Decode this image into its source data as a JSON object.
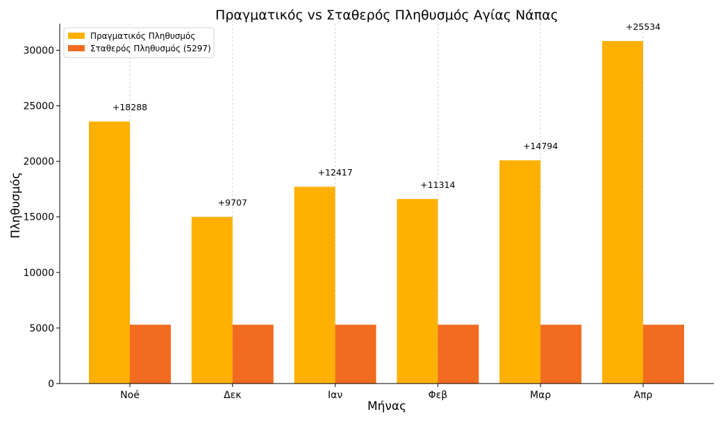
{
  "chart_data": {
    "type": "bar",
    "title": "Πραγματικός vs Σταθερός Πληθυσμός Αγίας Νάπας",
    "xlabel": "Μήνας",
    "ylabel": "Πληθυσμός",
    "categories": [
      "Noé",
      "Δεκ",
      "Ιαν",
      "Φεβ",
      "Μαρ",
      "Απρ"
    ],
    "series": [
      {
        "name": "Πραγματικός Πληθυσμός",
        "values": [
          23585,
          15004,
          17714,
          16611,
          20091,
          30831
        ],
        "color": "#ffb000"
      },
      {
        "name": "Σταθερός Πληθυσμός (5297)",
        "values": [
          5297,
          5297,
          5297,
          5297,
          5297,
          5297
        ],
        "color": "#f26b21"
      }
    ],
    "annotations": [
      "+18288",
      "+9707",
      "+12417",
      "+11314",
      "+14794",
      "+25534"
    ],
    "ylim": [
      0,
      32400
    ],
    "yticks": [
      0,
      5000,
      10000,
      15000,
      20000,
      25000,
      30000
    ],
    "ytick_labels": [
      "0",
      "5000",
      "10000",
      "15000",
      "20000",
      "25000",
      "30000"
    ],
    "grid": "x-dashed",
    "legend_position": "top-left"
  }
}
